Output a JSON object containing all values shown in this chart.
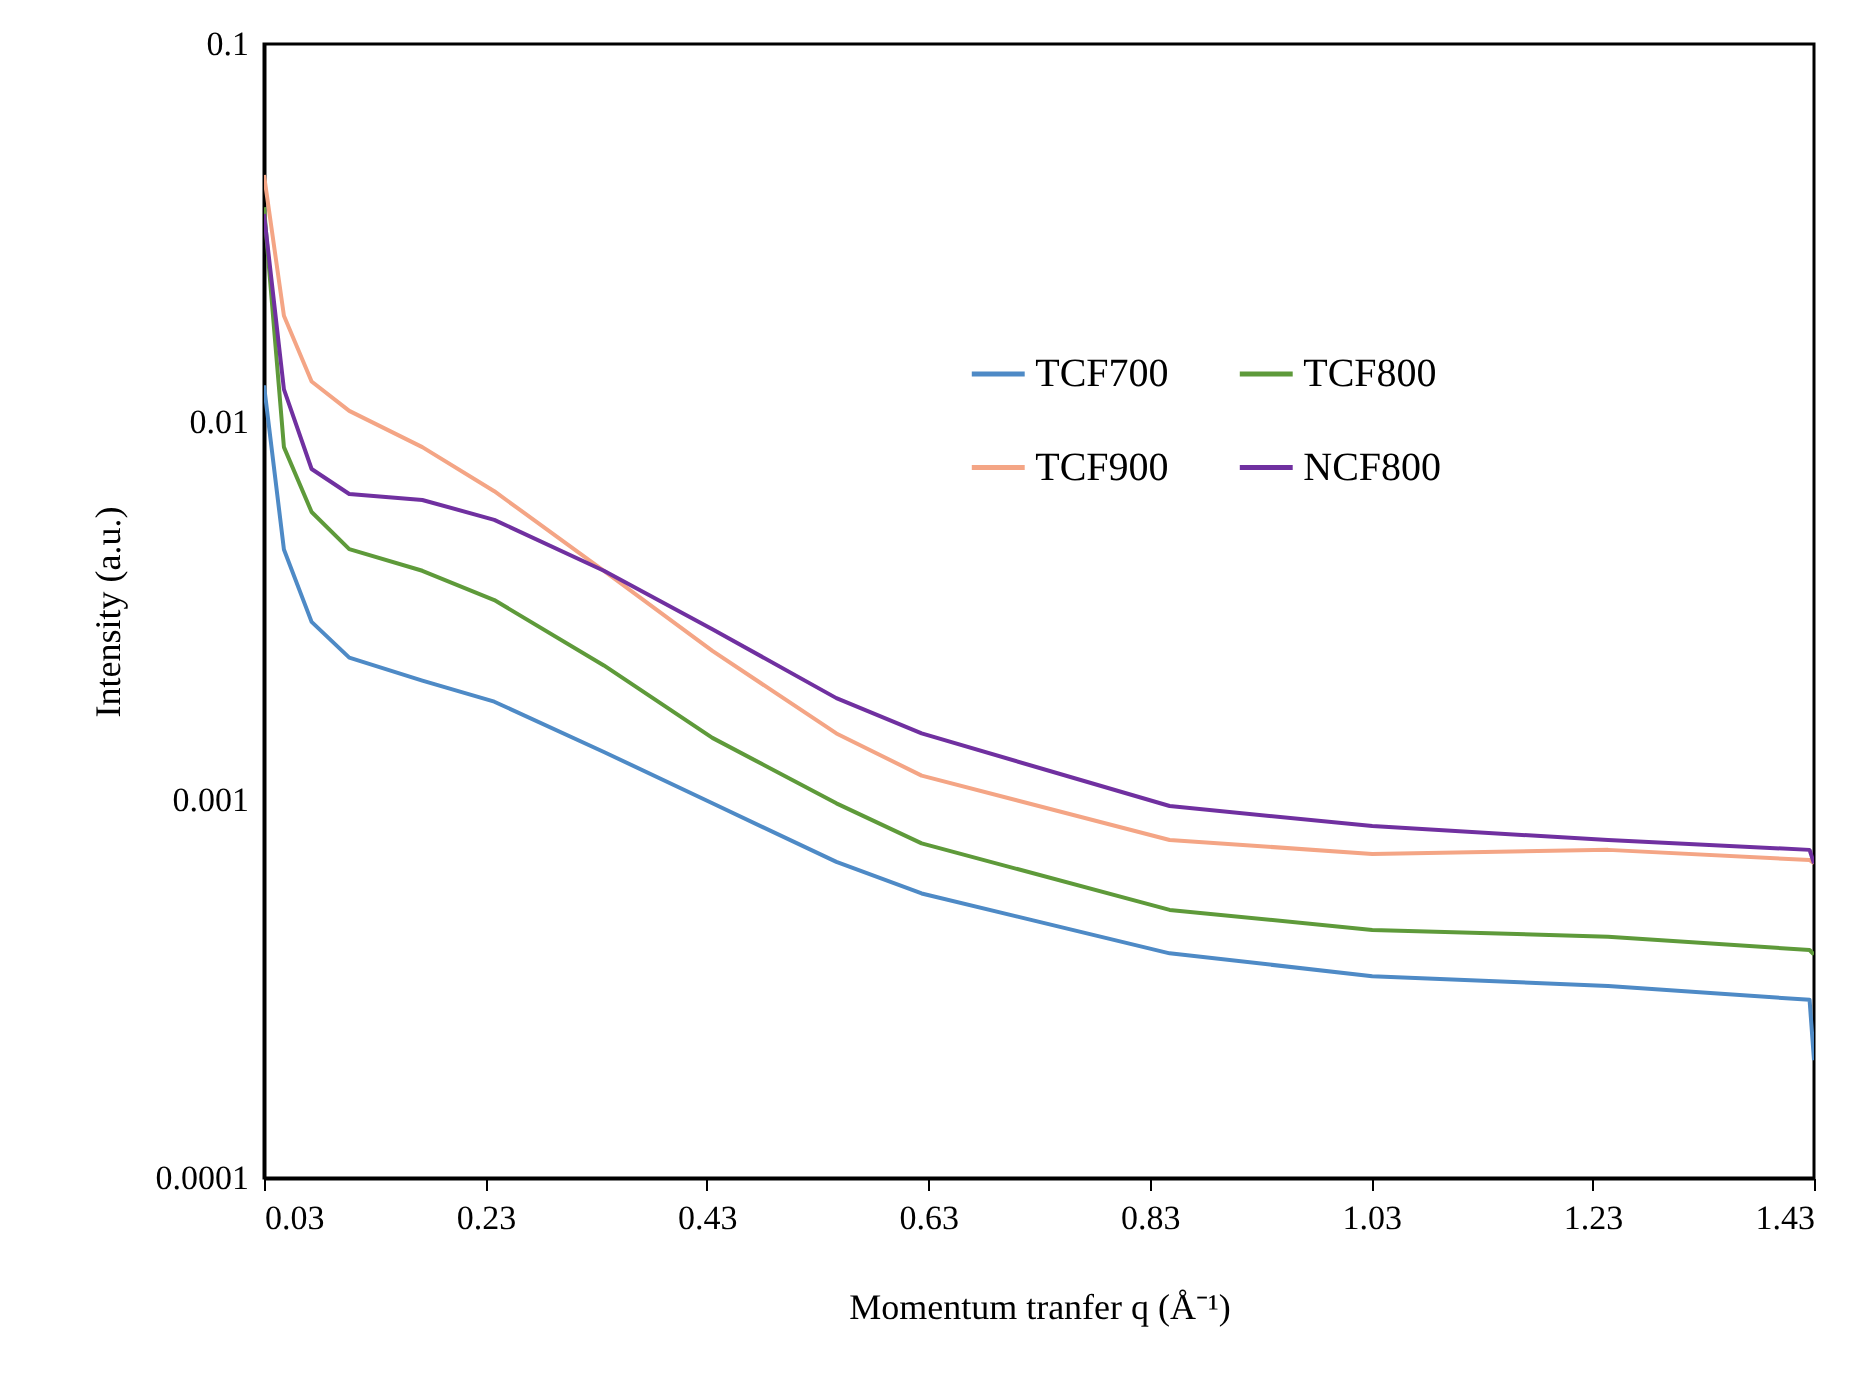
{
  "chart_data": {
    "type": "line",
    "xlabel": "Momentum tranfer q (Å⁻¹)",
    "ylabel": "Intensity (a.u.)",
    "x": [
      0.03,
      0.048,
      0.073,
      0.107,
      0.173,
      0.238,
      0.337,
      0.435,
      0.547,
      0.624,
      0.848,
      1.031,
      1.244,
      1.426,
      1.43
    ],
    "series": [
      {
        "name": "TCF700",
        "color": "#4e8ac6",
        "values": [
          0.0125,
          0.0046,
          0.00296,
          0.00238,
          0.00207,
          0.00182,
          0.00134,
          0.00098,
          0.000686,
          0.000566,
          0.000393,
          0.000342,
          0.000322,
          0.000296,
          0.000205
        ]
      },
      {
        "name": "TCF800",
        "color": "#5e9a3a",
        "values": [
          0.037,
          0.00858,
          0.00578,
          0.00461,
          0.00404,
          0.00338,
          0.00227,
          0.00146,
          0.00098,
          0.000768,
          0.000512,
          0.000453,
          0.000435,
          0.000401,
          0.00039
        ]
      },
      {
        "name": "TCF900",
        "color": "#f4a585",
        "values": [
          0.045,
          0.0191,
          0.0128,
          0.0107,
          0.00858,
          0.00656,
          0.00404,
          0.00248,
          0.0015,
          0.00116,
          0.000784,
          0.00072,
          0.000738,
          0.000694,
          0.00068
        ]
      },
      {
        "name": "NCF800",
        "color": "#7030a0",
        "values": [
          0.0355,
          0.0122,
          0.00751,
          0.00645,
          0.00622,
          0.00551,
          0.00404,
          0.00283,
          0.00186,
          0.0015,
          0.000964,
          0.000853,
          0.000784,
          0.000738,
          0.00068
        ]
      }
    ],
    "log": "y",
    "xlim": [
      0.03,
      1.43
    ],
    "xticks": [
      0.03,
      0.23,
      0.43,
      0.63,
      0.83,
      1.03,
      1.23,
      1.43
    ],
    "ylim": [
      0.0001,
      0.1
    ],
    "yticks": [
      0.0001,
      0.001,
      0.01,
      0.1
    ],
    "legend": "top right",
    "grid": false,
    "marker": "none",
    "line_style": "solid"
  }
}
